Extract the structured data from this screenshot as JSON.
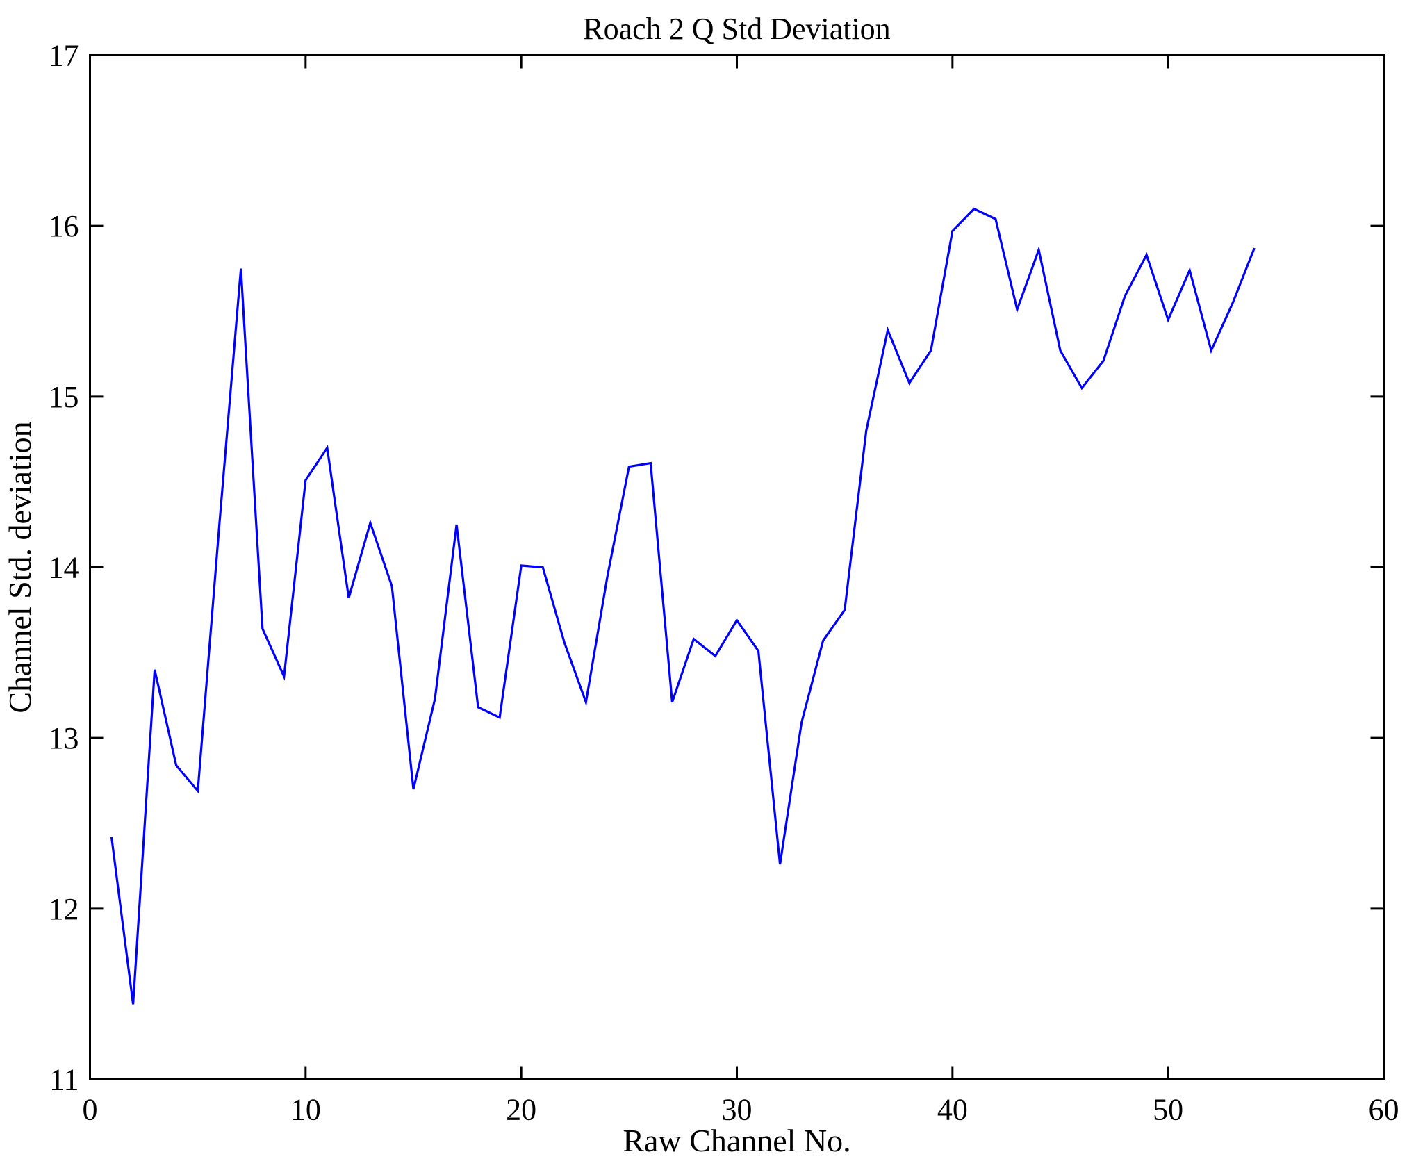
{
  "chart_data": {
    "type": "line",
    "title": "Roach 2 Q Std Deviation",
    "xlabel": "Raw Channel No.",
    "ylabel": "Channel Std. deviation",
    "xlim": [
      0,
      60
    ],
    "ylim": [
      11,
      17
    ],
    "xticks": [
      0,
      10,
      20,
      30,
      40,
      50,
      60
    ],
    "yticks": [
      11,
      12,
      13,
      14,
      15,
      16,
      17
    ],
    "grid": false,
    "legend": "none",
    "line_color": "#0000FF",
    "axis_color": "#000000",
    "background_color": "#FFFFFF",
    "x": [
      1,
      2,
      3,
      4,
      5,
      6,
      7,
      8,
      9,
      10,
      11,
      12,
      13,
      14,
      15,
      16,
      17,
      18,
      19,
      20,
      21,
      22,
      23,
      24,
      25,
      26,
      27,
      28,
      29,
      30,
      31,
      32,
      33,
      34,
      35,
      36,
      37,
      38,
      39,
      40,
      41,
      42,
      43,
      44,
      45,
      46,
      47,
      48,
      49,
      50,
      51,
      52,
      53,
      54
    ],
    "values": [
      12.42,
      11.44,
      13.4,
      12.84,
      12.69,
      14.25,
      15.75,
      13.64,
      13.36,
      14.51,
      14.7,
      13.82,
      14.26,
      13.89,
      12.7,
      13.23,
      14.25,
      13.18,
      13.12,
      14.01,
      14.0,
      13.56,
      13.21,
      13.95,
      14.59,
      14.61,
      13.21,
      13.58,
      13.48,
      13.69,
      13.51,
      12.26,
      13.09,
      13.57,
      13.75,
      14.8,
      15.39,
      15.08,
      15.27,
      15.97,
      16.1,
      16.04,
      15.51,
      15.86,
      15.27,
      15.05,
      15.21,
      15.59,
      15.83,
      15.45,
      15.74,
      15.27,
      15.55,
      15.87
    ]
  }
}
